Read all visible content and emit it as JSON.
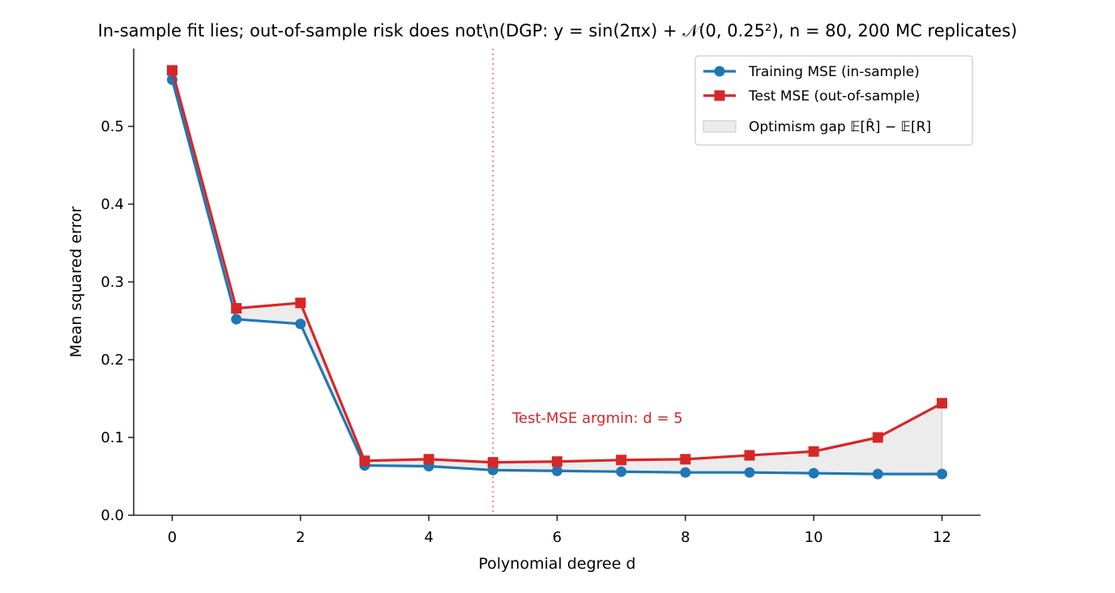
{
  "chart_data": {
    "type": "line",
    "title": "In-sample fit lies; out-of-sample risk does not\\n(DGP: y = sin(2πx) + 𝒩(0, 0.25²), n = 80, 200 MC replicates)",
    "xlabel": "Polynomial degree d",
    "ylabel": "Mean squared error",
    "xlim": [
      -0.6,
      12.6
    ],
    "ylim": [
      0.0,
      0.6
    ],
    "xticks": [
      0,
      2,
      4,
      6,
      8,
      10,
      12
    ],
    "yticks": [
      0.0,
      0.1,
      0.2,
      0.3,
      0.4,
      0.5
    ],
    "x": [
      0,
      1,
      2,
      3,
      4,
      5,
      6,
      7,
      8,
      9,
      10,
      11,
      12
    ],
    "series": [
      {
        "name": "Training MSE (in-sample)",
        "color": "#1f77b4",
        "marker": "circle",
        "values": [
          0.56,
          0.252,
          0.246,
          0.064,
          0.063,
          0.058,
          0.057,
          0.056,
          0.055,
          0.055,
          0.054,
          0.053,
          0.053
        ]
      },
      {
        "name": "Test MSE (out-of-sample)",
        "color": "#d62728",
        "marker": "square",
        "values": [
          0.572,
          0.266,
          0.273,
          0.07,
          0.072,
          0.068,
          0.069,
          0.071,
          0.072,
          0.077,
          0.082,
          0.1,
          0.144
        ]
      }
    ],
    "fill_between": {
      "name": "Optimism gap 𝔼[R̂] − 𝔼[R]",
      "color": "#d9d9d9"
    },
    "vline": {
      "x": 5,
      "color": "#f08080",
      "style": "dotted"
    },
    "annotation": {
      "text": "Test-MSE argmin: d = 5",
      "x": 5.3,
      "y": 0.125,
      "color": "#d62728"
    },
    "legend_position": "top-right",
    "grid": false
  }
}
